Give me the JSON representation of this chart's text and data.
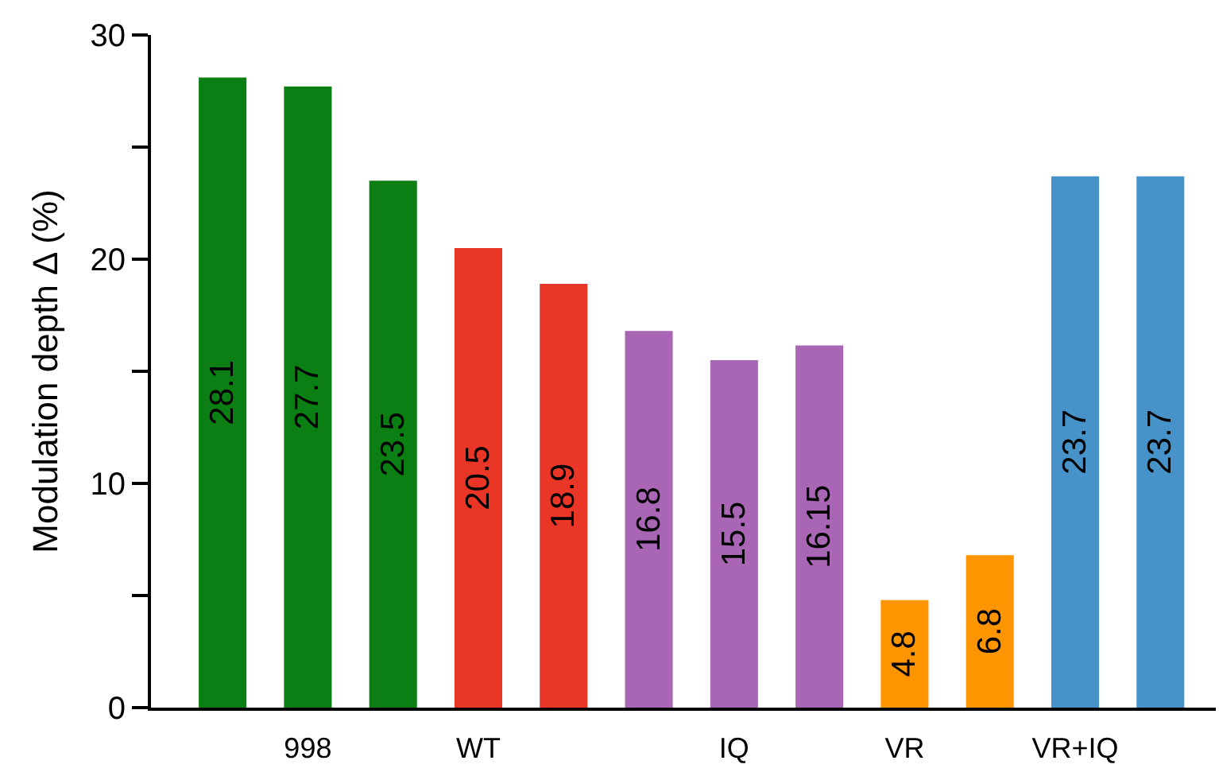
{
  "chart_data": {
    "type": "bar",
    "ylabel": "Modulation depth Δ (%)",
    "categories": [
      null,
      "998",
      null,
      "WT",
      null,
      null,
      "IQ",
      null,
      "VR",
      null,
      "VR+IQ",
      null
    ],
    "values": [
      28.1,
      27.7,
      23.5,
      20.5,
      18.9,
      16.8,
      15.5,
      16.15,
      4.8,
      6.8,
      23.7,
      23.7
    ],
    "colors": [
      "#0b7f14",
      "#0b7f14",
      "#0b7f14",
      "#e93627",
      "#e93627",
      "#a866b5",
      "#a866b5",
      "#a866b5",
      "#fd9500",
      "#fd9500",
      "#4792c9",
      "#4792c9"
    ],
    "ylim": [
      0,
      30
    ],
    "yticks": [
      0,
      {
        "value": 5,
        "label": null
      },
      10,
      {
        "value": 15,
        "label": null
      },
      20,
      {
        "value": 25,
        "label": null
      },
      30
    ],
    "data_labels": true
  }
}
